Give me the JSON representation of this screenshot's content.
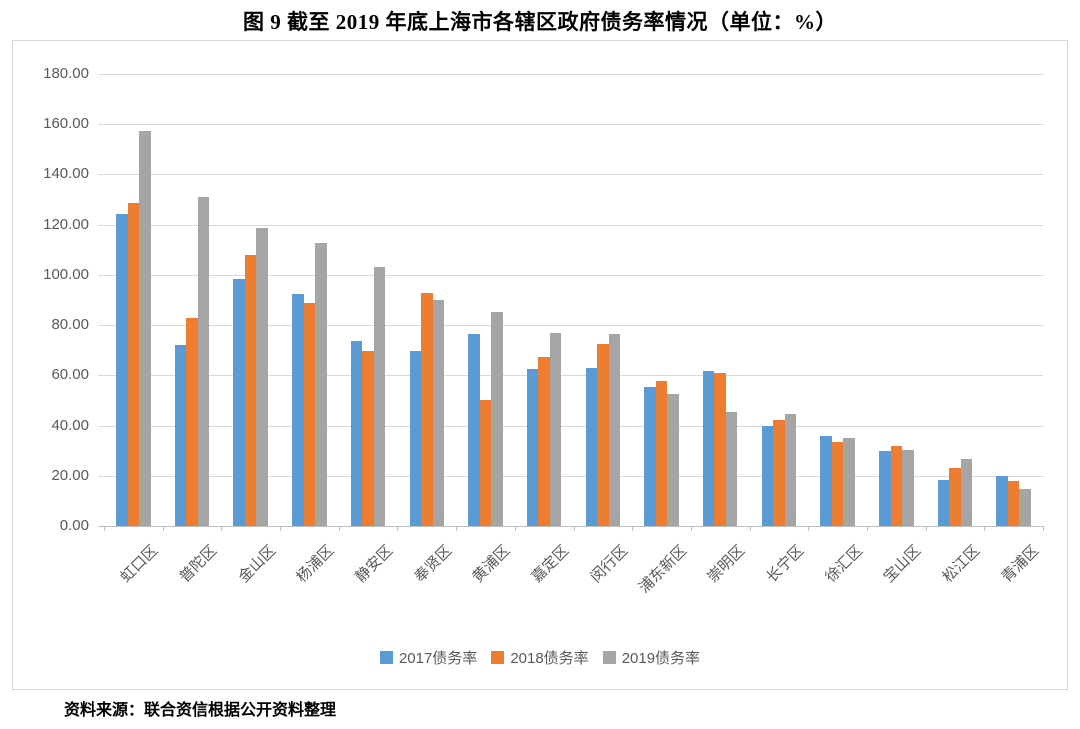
{
  "title": "图 9  截至 2019 年底上海市各辖区政府债务率情况（单位：%）",
  "source": "资料来源：联合资信根据公开资料整理",
  "colors": {
    "series_2017": "#5B9BD5",
    "series_2018": "#ED7D31",
    "series_2019": "#A5A5A5",
    "gridline": "#D9D9D9",
    "axis_text": "#595959",
    "frame_border": "#D9D9D9",
    "title_text": "#000000"
  },
  "chart_data": {
    "type": "bar",
    "title": "图 9  截至 2019 年底上海市各辖区政府债务率情况（单位：%）",
    "xlabel": "",
    "ylabel": "",
    "ylim": [
      0,
      180
    ],
    "ytick_step": 20,
    "ytick_labels": [
      "180.00",
      "160.00",
      "140.00",
      "120.00",
      "100.00",
      "80.00",
      "60.00",
      "40.00",
      "20.00",
      "0.00"
    ],
    "grid": true,
    "legend_position": "bottom",
    "categories": [
      "虹口区",
      "普陀区",
      "金山区",
      "杨浦区",
      "静安区",
      "奉贤区",
      "黄浦区",
      "嘉定区",
      "闵行区",
      "浦东新区",
      "崇明区",
      "长宁区",
      "徐汇区",
      "宝山区",
      "松江区",
      "青浦区"
    ],
    "series": [
      {
        "name": "2017债务率",
        "color": "#5B9BD5",
        "values": [
          124.4,
          72.0,
          98.5,
          92.3,
          73.8,
          69.5,
          76.6,
          62.5,
          62.8,
          55.2,
          61.7,
          39.8,
          35.7,
          29.8,
          18.5,
          20.1
        ]
      },
      {
        "name": "2018债务率",
        "color": "#ED7D31",
        "values": [
          128.7,
          83.0,
          108.0,
          88.9,
          69.5,
          92.6,
          50.2,
          67.5,
          72.4,
          57.6,
          61.0,
          42.4,
          33.3,
          32.0,
          23.2,
          17.8
        ]
      },
      {
        "name": "2019债务率",
        "color": "#A5A5A5",
        "values": [
          157.3,
          130.9,
          118.7,
          112.8,
          103.2,
          90.0,
          85.4,
          77.0,
          76.6,
          52.5,
          45.3,
          44.8,
          34.9,
          30.2,
          26.8,
          14.8
        ]
      }
    ]
  }
}
